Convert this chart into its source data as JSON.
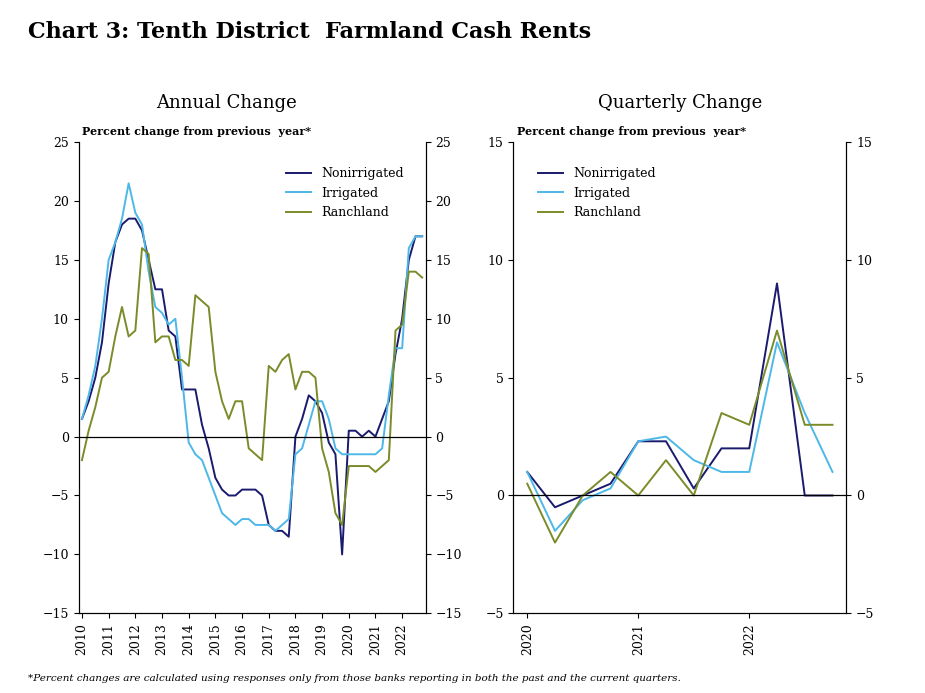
{
  "title": "Chart 3: Tenth District  Farmland Cash Rents",
  "footnote": "*Percent changes are calculated using responses only from those banks reporting in both the past and the current quarters.",
  "left_subtitle": "Annual Change",
  "right_subtitle": "Quarterly Change",
  "left_ylabel": "Percent change from previous  year*",
  "right_ylabel": "Percent change from previous  year*",
  "left_ylim": [
    -15,
    25
  ],
  "right_ylim": [
    -5,
    15
  ],
  "left_yticks": [
    -15,
    -10,
    -5,
    0,
    5,
    10,
    15,
    20,
    25
  ],
  "right_yticks": [
    -5,
    0,
    5,
    10,
    15
  ],
  "colors": {
    "nonirrigated": "#1a1a6e",
    "irrigated": "#4db8e8",
    "ranchland": "#7a8c2a"
  },
  "annual": {
    "nonirrigated": [
      1.5,
      3.0,
      5.0,
      8.0,
      13.0,
      16.5,
      18.0,
      18.5,
      18.5,
      17.5,
      15.0,
      12.5,
      12.5,
      9.0,
      8.5,
      4.0,
      4.0,
      4.0,
      1.0,
      -1.0,
      -3.5,
      -4.5,
      -5.0,
      -5.0,
      -4.5,
      -4.5,
      -4.5,
      -5.0,
      -7.5,
      -8.0,
      -8.0,
      -8.5,
      0.0,
      1.5,
      3.5,
      3.0,
      2.0,
      -0.5,
      -1.5,
      -10.0,
      0.5,
      0.5,
      0.0,
      0.5,
      0.0,
      1.5,
      3.0,
      7.0,
      10.0,
      15.0,
      17.0,
      17.0
    ],
    "irrigated": [
      1.5,
      3.5,
      6.0,
      10.0,
      15.0,
      16.5,
      18.5,
      21.5,
      19.0,
      18.0,
      14.0,
      11.0,
      10.5,
      9.5,
      10.0,
      5.0,
      -0.5,
      -1.5,
      -2.0,
      -3.5,
      -5.0,
      -6.5,
      -7.0,
      -7.5,
      -7.0,
      -7.0,
      -7.5,
      -7.5,
      -7.5,
      -8.0,
      -7.5,
      -7.0,
      -1.5,
      -1.0,
      1.0,
      3.0,
      3.0,
      1.5,
      -1.0,
      -1.5,
      -1.5,
      -1.5,
      -1.5,
      -1.5,
      -1.5,
      -1.0,
      3.5,
      7.5,
      7.5,
      16.0,
      17.0,
      17.0
    ],
    "ranchland": [
      -2.0,
      0.5,
      2.5,
      5.0,
      5.5,
      8.5,
      11.0,
      8.5,
      9.0,
      16.0,
      15.5,
      8.0,
      8.5,
      8.5,
      6.5,
      6.5,
      6.0,
      12.0,
      11.5,
      11.0,
      5.5,
      3.0,
      1.5,
      3.0,
      3.0,
      -1.0,
      -1.5,
      -2.0,
      6.0,
      5.5,
      6.5,
      7.0,
      4.0,
      5.5,
      5.5,
      5.0,
      -1.0,
      -3.0,
      -6.5,
      -7.5,
      -2.5,
      -2.5,
      -2.5,
      -2.5,
      -3.0,
      -2.5,
      -2.0,
      9.0,
      9.5,
      14.0,
      14.0,
      13.5
    ]
  },
  "quarterly": {
    "nonirrigated": [
      1.0,
      -0.5,
      0.0,
      0.5,
      2.3,
      2.3,
      0.3,
      2.0,
      2.0,
      9.0,
      0.0,
      0.0
    ],
    "irrigated": [
      1.0,
      -1.5,
      -0.2,
      0.3,
      2.3,
      2.5,
      1.5,
      1.0,
      1.0,
      6.5,
      3.5,
      1.0
    ],
    "ranchland": [
      0.5,
      -2.0,
      0.0,
      1.0,
      0.0,
      1.5,
      0.0,
      3.5,
      3.0,
      7.0,
      3.0,
      3.0
    ]
  }
}
